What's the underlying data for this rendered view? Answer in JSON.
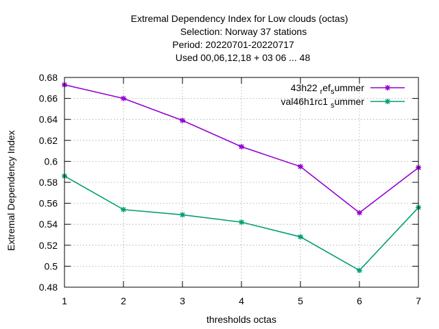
{
  "chart_data": {
    "type": "line",
    "title_lines": [
      "Extremal Dependency Index  for Low clouds (octas)",
      "Selection: Norway     37 stations",
      "Period: 20220701-20220717",
      "Used  00,06,12,18  + 03 06 ... 48"
    ],
    "xlabel": "thresholds octas",
    "ylabel": "Extremal Dependency Index",
    "x": [
      1,
      2,
      3,
      4,
      5,
      6,
      7
    ],
    "xlim": [
      1,
      7
    ],
    "ylim": [
      0.48,
      0.68
    ],
    "xticks": [
      "1",
      "2",
      "3",
      "4",
      "5",
      "6",
      "7"
    ],
    "yticks": [
      "0.48",
      "0.5",
      "0.52",
      "0.54",
      "0.56",
      "0.58",
      "0.6",
      "0.62",
      "0.64",
      "0.66",
      "0.68"
    ],
    "grid": true,
    "legend_position": "top-right",
    "series": [
      {
        "name": "43h22_ref_summer",
        "legend_text": "43h22 ",
        "legend_sub1": "r",
        "legend_mid": "ef",
        "legend_sub2": "s",
        "legend_tail": "ummer",
        "color": "#9400d3",
        "values": [
          0.673,
          0.66,
          0.639,
          0.614,
          0.595,
          0.551,
          0.594
        ]
      },
      {
        "name": "val46h1rc1_summer",
        "legend_text": "val46h1rc1 ",
        "legend_sub1": "s",
        "legend_tail": "ummer",
        "color": "#009e73",
        "values": [
          0.586,
          0.554,
          0.549,
          0.542,
          0.528,
          0.496,
          0.556
        ]
      }
    ]
  }
}
